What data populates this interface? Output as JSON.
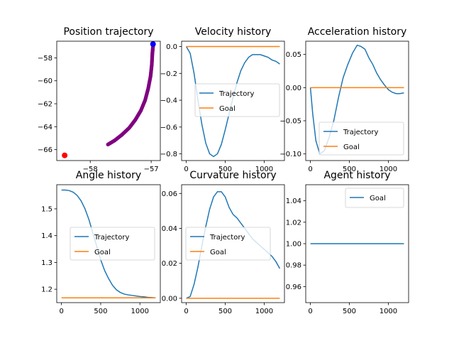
{
  "chart_data": [
    {
      "id": "position",
      "type": "scatter",
      "title": "Position trajectory",
      "xlabel": "",
      "ylabel": "",
      "xlim": [
        -58.55,
        -56.85
      ],
      "ylim": [
        -66.95,
        -56.55
      ],
      "xticks": [
        -58,
        -57
      ],
      "xtick_labels": [
        "−58",
        "−57"
      ],
      "yticks": [
        -66,
        -64,
        -62,
        -60,
        -58
      ],
      "ytick_labels": [
        "−66",
        "−64",
        "−62",
        "−60",
        "−58"
      ],
      "grid": false,
      "colors": {
        "path": "#800080",
        "start": "#ff0000",
        "end": "#0000ff"
      },
      "path": {
        "x": [
          -57.71,
          -57.6,
          -57.48,
          -57.36,
          -57.26,
          -57.17,
          -57.1,
          -57.05,
          -57.01,
          -56.99,
          -56.98,
          -56.97
        ],
        "y": [
          -65.55,
          -65.2,
          -64.7,
          -64.1,
          -63.4,
          -62.6,
          -61.7,
          -60.7,
          -59.6,
          -58.6,
          -57.6,
          -57.0
        ]
      },
      "start_point": {
        "x": -58.42,
        "y": -66.5
      },
      "end_point": {
        "x": -56.97,
        "y": -56.8
      }
    },
    {
      "id": "velocity",
      "type": "line",
      "title": "Velocity history",
      "xlabel": "",
      "ylabel": "",
      "xlim": [
        -60,
        1260
      ],
      "ylim": [
        -0.85,
        0.04
      ],
      "xticks": [
        0,
        500,
        1000
      ],
      "xtick_labels": [
        "0",
        "500",
        "1000"
      ],
      "yticks": [
        0.0,
        -0.2,
        -0.4,
        -0.6,
        -0.8
      ],
      "ytick_labels": [
        "0.0",
        "−0.2",
        "−0.4",
        "−0.6",
        "−0.8"
      ],
      "legend": {
        "position": "center-right"
      },
      "series": [
        {
          "name": "Trajectory",
          "color": "#1f77b4",
          "x": [
            0,
            50,
            100,
            150,
            200,
            250,
            300,
            350,
            400,
            450,
            500,
            550,
            600,
            650,
            700,
            750,
            800,
            850,
            900,
            950,
            1000,
            1050,
            1100,
            1150,
            1200
          ],
          "y": [
            0.0,
            -0.05,
            -0.2,
            -0.4,
            -0.58,
            -0.72,
            -0.8,
            -0.82,
            -0.8,
            -0.73,
            -0.62,
            -0.5,
            -0.38,
            -0.27,
            -0.18,
            -0.12,
            -0.08,
            -0.06,
            -0.06,
            -0.06,
            -0.07,
            -0.08,
            -0.1,
            -0.11,
            -0.13
          ]
        },
        {
          "name": "Goal",
          "color": "#ff7f0e",
          "x": [
            0,
            1200
          ],
          "y": [
            0.0,
            0.0
          ]
        }
      ]
    },
    {
      "id": "acceleration",
      "type": "line",
      "title": "Acceleration history",
      "xlabel": "",
      "ylabel": "",
      "xlim": [
        -60,
        1260
      ],
      "ylim": [
        -0.11,
        0.07
      ],
      "xticks": [
        0,
        500,
        1000
      ],
      "xtick_labels": [
        "0",
        "500",
        "1000"
      ],
      "yticks": [
        0.05,
        0.0,
        -0.05,
        -0.1
      ],
      "ytick_labels": [
        "0.05",
        "0.00",
        "−0.05",
        "−0.10"
      ],
      "legend": {
        "position": "lower-right"
      },
      "series": [
        {
          "name": "Trajectory",
          "color": "#1f77b4",
          "x": [
            0,
            30,
            70,
            120,
            180,
            240,
            300,
            360,
            420,
            480,
            540,
            600,
            650,
            700,
            750,
            800,
            850,
            900,
            950,
            1000,
            1050,
            1100,
            1150,
            1200
          ],
          "y": [
            0.0,
            -0.04,
            -0.08,
            -0.1,
            -0.095,
            -0.075,
            -0.05,
            -0.015,
            0.015,
            0.035,
            0.052,
            0.064,
            0.062,
            0.058,
            0.045,
            0.035,
            0.022,
            0.012,
            0.004,
            -0.003,
            -0.007,
            -0.009,
            -0.009,
            -0.008
          ]
        },
        {
          "name": "Goal",
          "color": "#ff7f0e",
          "x": [
            0,
            1200
          ],
          "y": [
            0.0,
            0.0
          ]
        }
      ]
    },
    {
      "id": "angle",
      "type": "line",
      "title": "Angle history",
      "xlabel": "",
      "ylabel": "",
      "xlim": [
        -60,
        1260
      ],
      "ylim": [
        1.15,
        1.59
      ],
      "xticks": [
        0,
        500,
        1000
      ],
      "xtick_labels": [
        "0",
        "500",
        "1000"
      ],
      "yticks": [
        1.2,
        1.3,
        1.4,
        1.5
      ],
      "ytick_labels": [
        "1.2",
        "1.3",
        "1.4",
        "1.5"
      ],
      "legend": {
        "position": "center-right"
      },
      "series": [
        {
          "name": "Trajectory",
          "color": "#1f77b4",
          "x": [
            0,
            50,
            100,
            150,
            200,
            250,
            300,
            350,
            400,
            450,
            500,
            550,
            600,
            650,
            700,
            750,
            800,
            850,
            900,
            950,
            1000,
            1050,
            1100,
            1150,
            1200
          ],
          "y": [
            1.57,
            1.57,
            1.568,
            1.562,
            1.55,
            1.53,
            1.5,
            1.46,
            1.41,
            1.36,
            1.31,
            1.27,
            1.24,
            1.215,
            1.198,
            1.188,
            1.182,
            1.179,
            1.177,
            1.175,
            1.173,
            1.172,
            1.17,
            1.169,
            1.168
          ]
        },
        {
          "name": "Goal",
          "color": "#ff7f0e",
          "x": [
            0,
            1200
          ],
          "y": [
            1.168,
            1.168
          ]
        }
      ]
    },
    {
      "id": "curvature",
      "type": "line",
      "title": "Curvature history",
      "xlabel": "",
      "ylabel": "",
      "xlim": [
        -60,
        1260
      ],
      "ylim": [
        -0.0025,
        0.065
      ],
      "xticks": [
        0,
        500,
        1000
      ],
      "xtick_labels": [
        "0",
        "500",
        "1000"
      ],
      "yticks": [
        0.0,
        0.02,
        0.04,
        0.06
      ],
      "ytick_labels": [
        "0.00",
        "0.02",
        "0.04",
        "0.06"
      ],
      "legend": {
        "position": "center-left"
      },
      "series": [
        {
          "name": "Trajectory",
          "color": "#1f77b4",
          "x": [
            0,
            50,
            100,
            150,
            200,
            250,
            300,
            350,
            400,
            450,
            500,
            550,
            600,
            650,
            700,
            750,
            800,
            850,
            900,
            950,
            1000,
            1050,
            1100,
            1150,
            1200
          ],
          "y": [
            0.0,
            0.001,
            0.008,
            0.018,
            0.03,
            0.041,
            0.051,
            0.058,
            0.061,
            0.061,
            0.058,
            0.052,
            0.048,
            0.046,
            0.043,
            0.04,
            0.037,
            0.034,
            0.032,
            0.03,
            0.028,
            0.026,
            0.024,
            0.021,
            0.017
          ]
        },
        {
          "name": "Goal",
          "color": "#ff7f0e",
          "x": [
            0,
            1200
          ],
          "y": [
            0.0,
            0.0
          ]
        }
      ]
    },
    {
      "id": "agent",
      "type": "line",
      "title": "Agent history",
      "xlabel": "",
      "ylabel": "",
      "xlim": [
        -60,
        1260
      ],
      "ylim": [
        0.945,
        1.055
      ],
      "xticks": [
        0,
        500,
        1000
      ],
      "xtick_labels": [
        "0",
        "500",
        "1000"
      ],
      "yticks": [
        0.96,
        0.98,
        1.0,
        1.02,
        1.04
      ],
      "ytick_labels": [
        "0.96",
        "0.98",
        "1.00",
        "1.02",
        "1.04"
      ],
      "legend": {
        "position": "top-right"
      },
      "series": [
        {
          "name": "Goal",
          "color": "#1f77b4",
          "x": [
            0,
            1200
          ],
          "y": [
            1.0,
            1.0
          ]
        }
      ]
    }
  ]
}
